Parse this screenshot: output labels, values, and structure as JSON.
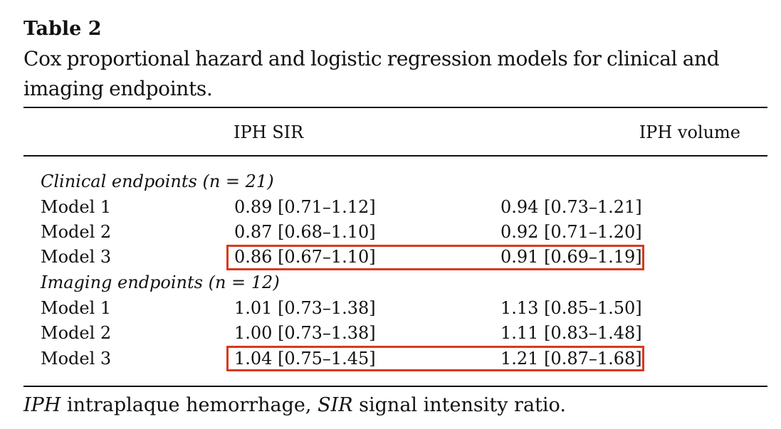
{
  "table": {
    "title": "Table 2",
    "caption": "Cox proportional hazard and logistic regression models for clinical and imaging endpoints.",
    "columns": [
      "IPH SIR",
      "IPH volume"
    ],
    "sections": [
      {
        "label": "Clinical endpoints (n = 21)",
        "rows": [
          {
            "label": "Model 1",
            "iph_sir": "0.89 [0.71–1.12]",
            "iph_volume": "0.94 [0.73–1.21]"
          },
          {
            "label": "Model 2",
            "iph_sir": "0.87 [0.68–1.10]",
            "iph_volume": "0.92 [0.71–1.20]"
          },
          {
            "label": "Model 3",
            "iph_sir": "0.86 [0.67–1.10]",
            "iph_volume": "0.91 [0.69–1.19]"
          }
        ]
      },
      {
        "label": "Imaging endpoints (n = 12)",
        "rows": [
          {
            "label": "Model 1",
            "iph_sir": "1.01 [0.73–1.38]",
            "iph_volume": "1.13 [0.85–1.50]"
          },
          {
            "label": "Model 2",
            "iph_sir": "1.00 [0.73–1.38]",
            "iph_volume": "1.11 [0.83–1.48]"
          },
          {
            "label": "Model 3",
            "iph_sir": "1.04 [0.75–1.45]",
            "iph_volume": "1.21 [0.87–1.68]"
          }
        ]
      }
    ],
    "highlight_color": "#d9391f",
    "footnote": {
      "abbr1": "IPH",
      "def1": " intraplaque hemorrhage,",
      "abbr2": "SIR",
      "def2": " signal intensity ratio."
    }
  }
}
